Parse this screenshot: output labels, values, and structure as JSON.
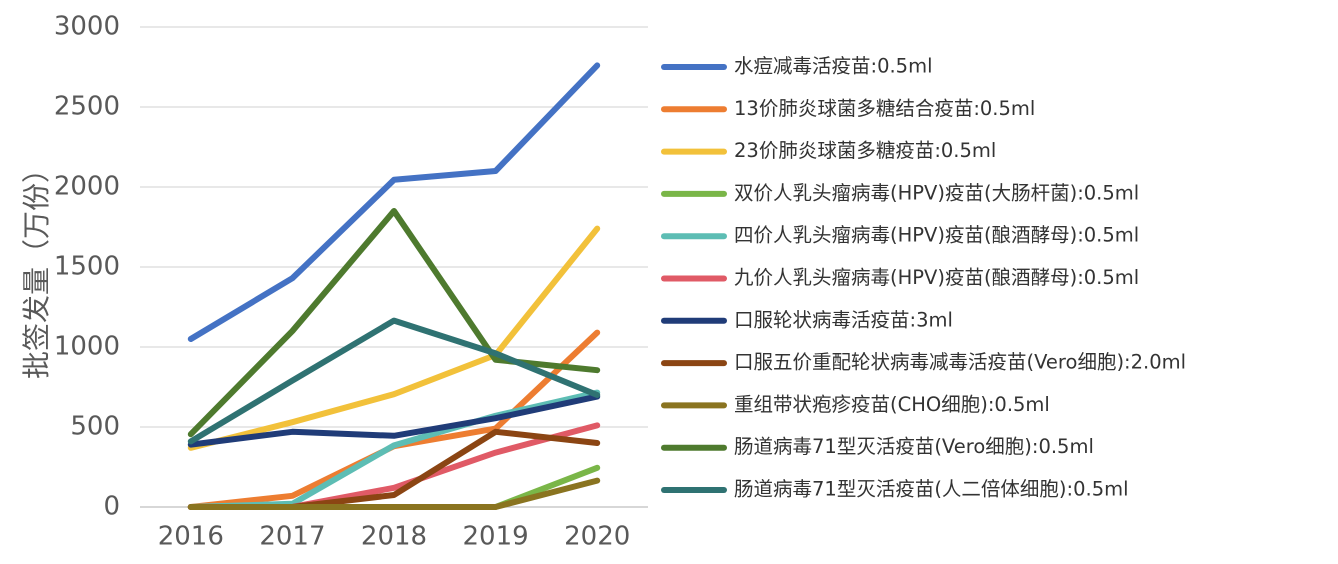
{
  "chart_data": {
    "type": "line",
    "ylabel": "批签发量（万份）",
    "x": [
      "2016",
      "2017",
      "2018",
      "2019",
      "2020"
    ],
    "ylim": [
      0,
      3000
    ],
    "yticks": [
      "0",
      "500",
      "1000",
      "1500",
      "2000",
      "2500",
      "3000"
    ],
    "grid": true,
    "legend_position": "right",
    "series": [
      {
        "name": "水痘减毒活疫苗:0.5ml",
        "color": "#4472C4",
        "values": [
          1050,
          1430,
          2045,
          2100,
          2760
        ]
      },
      {
        "name": "13价肺炎球菌多糖结合疫苗:0.5ml",
        "color": "#ED7D31",
        "values": [
          0,
          70,
          380,
          490,
          1090
        ]
      },
      {
        "name": "23价肺炎球菌多糖疫苗:0.5ml",
        "color": "#F2C13A",
        "values": [
          370,
          530,
          705,
          950,
          1740
        ]
      },
      {
        "name": "双价人乳头瘤病毒(HPV)疫苗(大肠杆菌):0.5ml",
        "color": "#7AB648",
        "values": [
          0,
          0,
          0,
          0,
          245
        ]
      },
      {
        "name": "四价人乳头瘤病毒(HPV)疫苗(酿酒酵母):0.5ml",
        "color": "#5DBDB4",
        "values": [
          0,
          20,
          385,
          570,
          715
        ]
      },
      {
        "name": "九价人乳头瘤病毒(HPV)疫苗(酿酒酵母):0.5ml",
        "color": "#E05A66",
        "values": [
          0,
          0,
          120,
          340,
          510
        ]
      },
      {
        "name": "口服轮状病毒活疫苗:3ml",
        "color": "#203C78",
        "values": [
          390,
          470,
          445,
          555,
          690
        ]
      },
      {
        "name": "口服五价重配轮状病毒减毒活疫苗(Vero细胞):2.0ml",
        "color": "#8B4513",
        "values": [
          0,
          0,
          75,
          470,
          400
        ]
      },
      {
        "name": "重组带状疱疹疫苗(CHO细胞):0.5ml",
        "color": "#8A7420",
        "values": [
          0,
          0,
          0,
          0,
          165
        ]
      },
      {
        "name": "肠道病毒71型灭活疫苗(Vero细胞):0.5ml",
        "color": "#4E7A2E",
        "values": [
          455,
          1100,
          1850,
          920,
          855
        ]
      },
      {
        "name": "肠道病毒71型灭活疫苗(人二倍体细胞):0.5ml",
        "color": "#2F7272",
        "values": [
          410,
          790,
          1165,
          960,
          700
        ]
      }
    ]
  }
}
